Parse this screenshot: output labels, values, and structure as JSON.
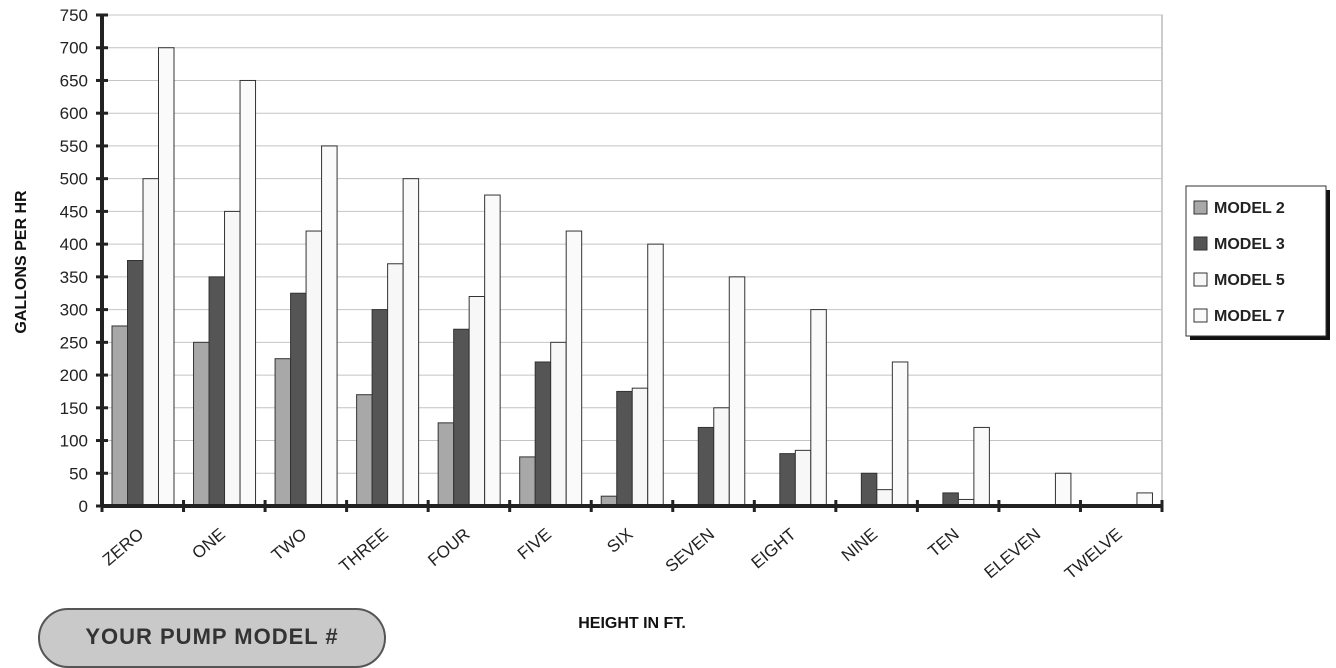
{
  "chart_data": {
    "type": "bar",
    "title": "",
    "xlabel": "HEIGHT IN FT.",
    "ylabel": "GALLONS PER HR",
    "ylim": [
      0,
      750
    ],
    "ytick_step": 50,
    "grid": true,
    "legend_position": "right",
    "categories": [
      "ZERO",
      "ONE",
      "TWO",
      "THREE",
      "FOUR",
      "FIVE",
      "SIX",
      "SEVEN",
      "EIGHT",
      "NINE",
      "TEN",
      "ELEVEN",
      "TWELVE"
    ],
    "series": [
      {
        "name": "MODEL 2",
        "color": "#a8a8a8",
        "values": [
          275,
          250,
          225,
          170,
          127,
          75,
          15,
          0,
          0,
          0,
          0,
          0,
          0
        ]
      },
      {
        "name": "MODEL 3",
        "color": "#555555",
        "values": [
          375,
          350,
          325,
          300,
          270,
          220,
          175,
          120,
          80,
          50,
          20,
          0,
          0
        ]
      },
      {
        "name": "MODEL 5",
        "color": "#f7f7f7",
        "values": [
          500,
          450,
          420,
          370,
          320,
          250,
          180,
          150,
          85,
          25,
          10,
          0,
          0
        ]
      },
      {
        "name": "MODEL 7",
        "color": "#fafafa",
        "values": [
          700,
          650,
          550,
          500,
          475,
          420,
          400,
          350,
          300,
          220,
          120,
          50,
          20
        ]
      }
    ]
  },
  "footer": {
    "pump_model_label": "YOUR PUMP MODEL #"
  }
}
